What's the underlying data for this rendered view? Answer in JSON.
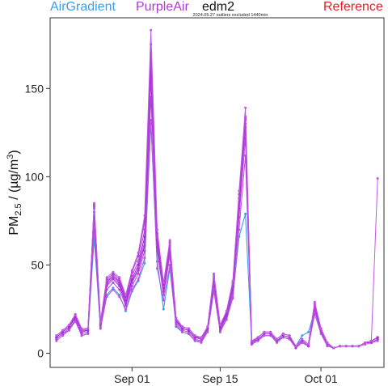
{
  "legend": [
    {
      "name": "AirGradient",
      "color": "#3c9ee8"
    },
    {
      "name": "PurpleAir",
      "color": "#b03cd8"
    },
    {
      "name": "edm2",
      "color": "#111111"
    },
    {
      "name": "Reference",
      "color": "#e0202a"
    }
  ],
  "chart_data": {
    "type": "line",
    "annotation": "2024.05.27 outliers excluded 1440min",
    "ylabel_main": "PM",
    "ylabel_sub": "2.5",
    "ylabel_rest": " / (µg/m",
    "ylabel_sup": "3",
    "ylabel_close": ")",
    "yticks": [
      0,
      50,
      100,
      150
    ],
    "ylim": [
      -8,
      190
    ],
    "xticks": [
      {
        "day": 13,
        "label": "Sep 01"
      },
      {
        "day": 27,
        "label": "Sep 15"
      },
      {
        "day": 43,
        "label": "Oct 01"
      }
    ],
    "xlim": [
      0,
      53
    ],
    "x_day_origin": "Aug 19",
    "grid": false,
    "base_series_values": [
      8,
      11,
      14,
      20,
      11,
      12,
      78,
      15,
      37,
      41,
      37,
      27,
      39,
      46,
      60,
      150,
      62,
      34,
      57,
      17,
      13,
      12,
      8,
      7,
      13,
      40,
      14,
      21,
      35,
      80,
      126,
      6,
      8,
      11,
      11,
      7,
      10,
      9,
      3,
      7,
      4,
      26,
      13,
      5,
      3,
      4,
      4,
      4,
      4,
      6,
      6,
      8
    ],
    "series": [
      {
        "color": "#3c9ee8",
        "width": 1.1,
        "values": [
          8,
          11,
          13,
          19,
          10,
          11,
          65,
          14,
          33,
          37,
          33,
          24,
          35,
          41,
          51,
          130,
          52,
          25,
          48,
          16,
          12,
          11,
          7,
          7,
          12,
          36,
          13,
          19,
          32,
          66,
          79,
          5,
          8,
          10,
          10,
          7,
          9,
          8,
          4,
          10,
          12,
          24,
          12,
          5,
          3,
          4,
          4,
          4,
          4,
          6,
          6,
          8
        ]
      },
      {
        "color": "#c050e0",
        "width": 1.0,
        "values": [
          7,
          10,
          13,
          18,
          10,
          11,
          70,
          14,
          32,
          36,
          32,
          25,
          36,
          42,
          54,
          132,
          48,
          30,
          50,
          15,
          12,
          11,
          7,
          6,
          12,
          35,
          12,
          19,
          31,
          70,
          112,
          5,
          7,
          10,
          10,
          6,
          9,
          8,
          3,
          6,
          4,
          22,
          11,
          4,
          3,
          4,
          4,
          4,
          4,
          5,
          6,
          7
        ]
      },
      {
        "color": "#b646dc",
        "width": 1.0,
        "values": [
          8,
          11,
          14,
          19,
          11,
          12,
          76,
          15,
          36,
          40,
          36,
          27,
          38,
          45,
          58,
          145,
          58,
          33,
          55,
          17,
          13,
          12,
          8,
          7,
          13,
          39,
          13,
          20,
          34,
          77,
          122,
          6,
          8,
          11,
          11,
          7,
          10,
          9,
          3,
          7,
          4,
          25,
          12,
          5,
          3,
          4,
          4,
          4,
          4,
          6,
          6,
          8
        ]
      },
      {
        "color": "#a83ad6",
        "width": 1.0,
        "values": [
          9,
          12,
          15,
          20,
          12,
          13,
          80,
          16,
          38,
          42,
          38,
          28,
          40,
          47,
          61,
          155,
          60,
          35,
          58,
          18,
          14,
          13,
          9,
          8,
          14,
          41,
          14,
          21,
          36,
          82,
          128,
          6,
          8,
          11,
          11,
          7,
          10,
          9,
          3,
          7,
          4,
          26,
          13,
          5,
          3,
          4,
          4,
          4,
          4,
          6,
          6,
          8
        ]
      },
      {
        "color": "#b040d8",
        "width": 1.0,
        "values": [
          9,
          12,
          15,
          21,
          12,
          13,
          82,
          16,
          39,
          43,
          39,
          29,
          41,
          48,
          63,
          160,
          62,
          36,
          60,
          18,
          14,
          13,
          9,
          8,
          14,
          42,
          15,
          22,
          37,
          84,
          130,
          6,
          9,
          12,
          12,
          8,
          11,
          10,
          4,
          8,
          5,
          27,
          13,
          5,
          3,
          4,
          4,
          4,
          4,
          6,
          7,
          9
        ]
      },
      {
        "color": "#9e30d0",
        "width": 1.0,
        "values": [
          9,
          12,
          15,
          21,
          13,
          13,
          83,
          17,
          40,
          44,
          40,
          30,
          42,
          50,
          66,
          165,
          64,
          37,
          61,
          19,
          14,
          13,
          9,
          8,
          14,
          43,
          15,
          22,
          38,
          86,
          132,
          7,
          9,
          12,
          12,
          8,
          11,
          10,
          4,
          8,
          5,
          28,
          14,
          6,
          3,
          4,
          4,
          4,
          4,
          6,
          7,
          9
        ]
      },
      {
        "color": "#b84ae0",
        "width": 1.0,
        "values": [
          10,
          13,
          16,
          22,
          13,
          14,
          84,
          17,
          41,
          44,
          41,
          31,
          44,
          52,
          70,
          170,
          66,
          38,
          62,
          19,
          15,
          14,
          10,
          8,
          15,
          44,
          16,
          23,
          39,
          88,
          133,
          7,
          9,
          12,
          12,
          8,
          11,
          10,
          4,
          8,
          5,
          28,
          14,
          6,
          3,
          4,
          4,
          4,
          4,
          6,
          7,
          9
        ]
      },
      {
        "color": "#a838d6",
        "width": 1.0,
        "values": [
          10,
          13,
          16,
          22,
          14,
          14,
          84,
          18,
          42,
          45,
          42,
          32,
          46,
          55,
          75,
          175,
          68,
          39,
          63,
          20,
          15,
          14,
          10,
          9,
          15,
          45,
          16,
          23,
          40,
          90,
          134,
          7,
          9,
          12,
          12,
          8,
          11,
          10,
          4,
          8,
          5,
          29,
          14,
          6,
          3,
          4,
          4,
          4,
          4,
          6,
          7,
          9
        ]
      },
      {
        "color": "#c358e4",
        "width": 1.0,
        "values": [
          10,
          13,
          16,
          22,
          14,
          14,
          85,
          18,
          43,
          46,
          43,
          33,
          47,
          57,
          78,
          183,
          70,
          40,
          64,
          20,
          15,
          14,
          10,
          9,
          15,
          45,
          16,
          24,
          41,
          92,
          139,
          7,
          9,
          12,
          12,
          8,
          11,
          10,
          4,
          8,
          5,
          29,
          14,
          6,
          3,
          4,
          4,
          4,
          4,
          6,
          7,
          99
        ]
      }
    ]
  }
}
